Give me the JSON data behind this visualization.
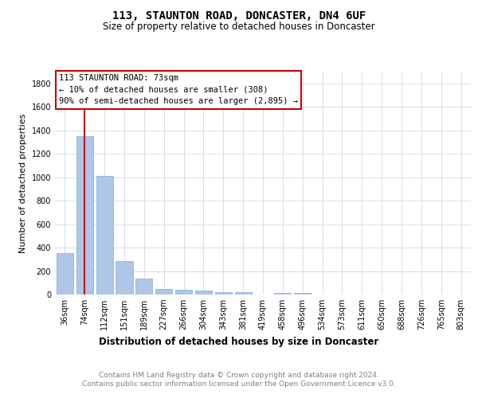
{
  "title1": "113, STAUNTON ROAD, DONCASTER, DN4 6UF",
  "title2": "Size of property relative to detached houses in Doncaster",
  "xlabel": "Distribution of detached houses by size in Doncaster",
  "ylabel": "Number of detached properties",
  "categories": [
    "36sqm",
    "74sqm",
    "112sqm",
    "151sqm",
    "189sqm",
    "227sqm",
    "266sqm",
    "304sqm",
    "343sqm",
    "381sqm",
    "419sqm",
    "458sqm",
    "496sqm",
    "534sqm",
    "573sqm",
    "611sqm",
    "650sqm",
    "688sqm",
    "726sqm",
    "765sqm",
    "803sqm"
  ],
  "values": [
    355,
    1350,
    1010,
    285,
    135,
    45,
    40,
    35,
    22,
    20,
    0,
    15,
    12,
    0,
    0,
    0,
    0,
    0,
    0,
    0,
    0
  ],
  "bar_color": "#aec6e8",
  "bar_edge_color": "#7aadd4",
  "vline_x_index": 1,
  "vline_color": "#cc0000",
  "box_text": "113 STAUNTON ROAD: 73sqm\n← 10% of detached houses are smaller (308)\n90% of semi-detached houses are larger (2,895) →",
  "box_facecolor": "white",
  "box_edgecolor": "#cc0000",
  "annotation_fontsize": 7.5,
  "ylim": [
    0,
    1900
  ],
  "yticks": [
    0,
    200,
    400,
    600,
    800,
    1000,
    1200,
    1400,
    1600,
    1800
  ],
  "grid_color": "#d0d8e8",
  "footer_text": "Contains HM Land Registry data © Crown copyright and database right 2024.\nContains public sector information licensed under the Open Government Licence v3.0.",
  "title_fontsize": 10,
  "subtitle_fontsize": 8.5,
  "xlabel_fontsize": 8.5,
  "ylabel_fontsize": 8,
  "tick_fontsize": 7,
  "footer_fontsize": 6.5
}
